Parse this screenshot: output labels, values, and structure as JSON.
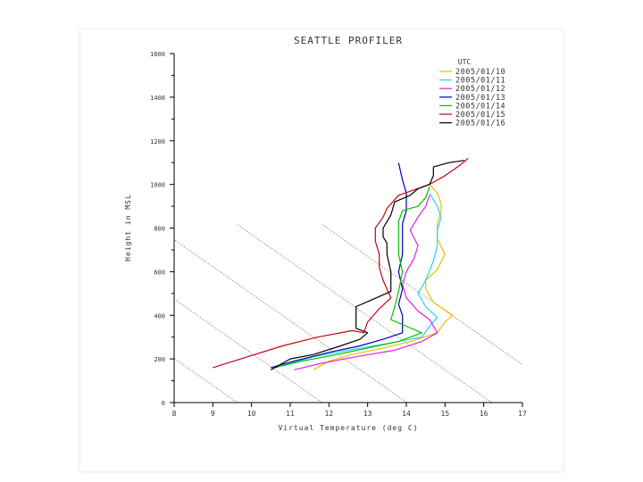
{
  "chart_data": {
    "type": "line",
    "title": "SEATTLE PROFILER",
    "xlabel": "Virtual Temperature (deg C)",
    "ylabel": "Height in MSL",
    "xlim": [
      8,
      17
    ],
    "ylim": [
      0,
      1600
    ],
    "x_ticks": [
      "8",
      "9",
      "10",
      "11",
      "12",
      "13",
      "14",
      "15",
      "16",
      "17"
    ],
    "y_ticks": [
      "0",
      "200",
      "400",
      "600",
      "800",
      "1000",
      "1200",
      "1400",
      "1600"
    ],
    "legend_title": "UTC",
    "legend_position": "top-right",
    "grid": false,
    "series": [
      {
        "name": "2005/01/10",
        "color": "#e8c000",
        "points": [
          [
            11.6,
            150
          ],
          [
            12.0,
            190
          ],
          [
            12.6,
            220
          ],
          [
            13.4,
            250
          ],
          [
            14.1,
            280
          ],
          [
            14.8,
            320
          ],
          [
            15.0,
            370
          ],
          [
            15.2,
            400
          ],
          [
            14.7,
            460
          ],
          [
            14.5,
            520
          ],
          [
            14.5,
            560
          ],
          [
            14.8,
            610
          ],
          [
            15.0,
            680
          ],
          [
            14.8,
            750
          ],
          [
            14.8,
            820
          ],
          [
            14.9,
            880
          ],
          [
            14.9,
            910
          ],
          [
            14.8,
            960
          ],
          [
            14.6,
            1000
          ]
        ]
      },
      {
        "name": "2005/01/11",
        "color": "#2ad2f0",
        "points": [
          [
            10.8,
            170
          ],
          [
            11.6,
            210
          ],
          [
            12.5,
            240
          ],
          [
            13.5,
            270
          ],
          [
            14.4,
            300
          ],
          [
            14.6,
            350
          ],
          [
            14.8,
            390
          ],
          [
            14.5,
            440
          ],
          [
            14.3,
            500
          ],
          [
            14.5,
            560
          ],
          [
            14.7,
            650
          ],
          [
            14.8,
            720
          ],
          [
            14.8,
            790
          ],
          [
            14.9,
            850
          ],
          [
            14.8,
            900
          ],
          [
            14.6,
            960
          ]
        ]
      },
      {
        "name": "2005/01/12",
        "color": "#e020e0",
        "points": [
          [
            11.1,
            150
          ],
          [
            11.8,
            180
          ],
          [
            12.7,
            210
          ],
          [
            13.7,
            240
          ],
          [
            14.4,
            280
          ],
          [
            14.8,
            320
          ],
          [
            14.6,
            380
          ],
          [
            14.3,
            420
          ],
          [
            14.0,
            480
          ],
          [
            13.9,
            540
          ],
          [
            14.0,
            600
          ],
          [
            14.2,
            660
          ],
          [
            14.3,
            720
          ],
          [
            14.1,
            790
          ],
          [
            14.3,
            850
          ],
          [
            14.5,
            900
          ],
          [
            14.6,
            950
          ]
        ]
      },
      {
        "name": "2005/01/13",
        "color": "#0000b4",
        "points": [
          [
            10.5,
            160
          ],
          [
            11.1,
            190
          ],
          [
            12.0,
            230
          ],
          [
            12.8,
            260
          ],
          [
            13.4,
            290
          ],
          [
            13.9,
            320
          ],
          [
            13.9,
            400
          ],
          [
            13.8,
            450
          ],
          [
            13.9,
            520
          ],
          [
            13.8,
            600
          ],
          [
            13.9,
            680
          ],
          [
            13.9,
            760
          ],
          [
            13.9,
            820
          ],
          [
            14.0,
            880
          ],
          [
            14.0,
            960
          ],
          [
            13.9,
            1020
          ],
          [
            13.8,
            1100
          ]
        ]
      },
      {
        "name": "2005/01/14",
        "color": "#00c000",
        "points": [
          [
            10.6,
            160
          ],
          [
            11.3,
            190
          ],
          [
            12.2,
            220
          ],
          [
            13.0,
            250
          ],
          [
            13.8,
            280
          ],
          [
            14.4,
            320
          ],
          [
            14.0,
            350
          ],
          [
            13.6,
            380
          ],
          [
            13.7,
            440
          ],
          [
            13.8,
            510
          ],
          [
            13.9,
            600
          ],
          [
            13.8,
            680
          ],
          [
            13.8,
            760
          ],
          [
            13.8,
            830
          ],
          [
            13.9,
            880
          ],
          [
            14.3,
            900
          ],
          [
            14.5,
            940
          ],
          [
            14.6,
            990
          ]
        ]
      },
      {
        "name": "2005/01/15",
        "color": "#c80014",
        "points": [
          [
            9.0,
            160
          ],
          [
            9.9,
            210
          ],
          [
            10.8,
            260
          ],
          [
            11.7,
            300
          ],
          [
            12.6,
            330
          ],
          [
            12.9,
            320
          ],
          [
            13.0,
            370
          ],
          [
            13.3,
            430
          ],
          [
            13.6,
            480
          ],
          [
            13.4,
            560
          ],
          [
            13.3,
            620
          ],
          [
            13.3,
            680
          ],
          [
            13.2,
            740
          ],
          [
            13.2,
            800
          ],
          [
            13.4,
            850
          ],
          [
            13.5,
            890
          ],
          [
            13.8,
            950
          ],
          [
            14.6,
            1000
          ],
          [
            15.0,
            1040
          ],
          [
            15.4,
            1090
          ],
          [
            15.6,
            1120
          ]
        ]
      },
      {
        "name": "2005/01/16",
        "color": "#000000",
        "points": [
          [
            10.5,
            150
          ],
          [
            11.0,
            200
          ],
          [
            11.6,
            220
          ],
          [
            12.3,
            260
          ],
          [
            12.8,
            290
          ],
          [
            13.0,
            320
          ],
          [
            12.7,
            340
          ],
          [
            12.7,
            440
          ],
          [
            13.1,
            470
          ],
          [
            13.6,
            510
          ],
          [
            13.6,
            600
          ],
          [
            13.5,
            680
          ],
          [
            13.5,
            730
          ],
          [
            13.4,
            760
          ],
          [
            13.4,
            800
          ],
          [
            13.5,
            830
          ],
          [
            13.6,
            860
          ],
          [
            13.7,
            920
          ],
          [
            14.1,
            950
          ],
          [
            14.3,
            980
          ],
          [
            14.6,
            1000
          ],
          [
            14.7,
            1040
          ],
          [
            14.7,
            1080
          ],
          [
            15.1,
            1100
          ],
          [
            15.5,
            1110
          ]
        ]
      }
    ]
  }
}
